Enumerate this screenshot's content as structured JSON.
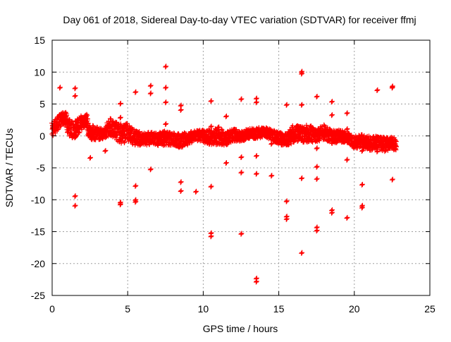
{
  "chart_data": {
    "type": "scatter",
    "title": "Day 061 of 2018, Sidereal Day-to-day VTEC variation (SDTVAR) for receiver ffmj",
    "xlabel": "GPS time / hours",
    "ylabel": "SDTVAR / TECUs",
    "xlim": [
      0,
      25
    ],
    "ylim": [
      -25,
      15
    ],
    "xticks": [
      0,
      5,
      10,
      15,
      20,
      25
    ],
    "yticks": [
      -25,
      -20,
      -15,
      -10,
      -5,
      0,
      5,
      10,
      15
    ],
    "grid": true,
    "marker": "plus",
    "series_color": "#ff0000",
    "main_band": [
      [
        0.0,
        1.0,
        1.2
      ],
      [
        0.3,
        1.8,
        1.2
      ],
      [
        0.6,
        2.6,
        1.0
      ],
      [
        0.9,
        2.8,
        1.0
      ],
      [
        1.1,
        1.2,
        1.4
      ],
      [
        1.5,
        1.0,
        1.4
      ],
      [
        1.9,
        2.0,
        1.2
      ],
      [
        2.3,
        2.6,
        1.0
      ],
      [
        2.4,
        0.6,
        1.2
      ],
      [
        3.0,
        0.4,
        1.0
      ],
      [
        3.4,
        0.3,
        0.8
      ],
      [
        3.8,
        1.5,
        1.4
      ],
      [
        4.2,
        0.8,
        1.4
      ],
      [
        4.6,
        0.3,
        1.6
      ],
      [
        5.0,
        0.6,
        1.4
      ],
      [
        5.4,
        -0.2,
        1.2
      ],
      [
        6.0,
        -0.5,
        1.0
      ],
      [
        6.5,
        -0.4,
        1.0
      ],
      [
        7.0,
        -0.5,
        1.0
      ],
      [
        7.5,
        -0.3,
        1.2
      ],
      [
        8.0,
        -0.5,
        1.0
      ],
      [
        8.5,
        -0.8,
        1.2
      ],
      [
        9.0,
        -0.4,
        1.0
      ],
      [
        9.5,
        0.0,
        0.8
      ],
      [
        10.0,
        0.0,
        1.0
      ],
      [
        10.5,
        -0.3,
        1.2
      ],
      [
        11.0,
        0.1,
        1.4
      ],
      [
        11.5,
        -0.5,
        1.0
      ],
      [
        12.0,
        0.2,
        1.0
      ],
      [
        12.5,
        -0.1,
        0.8
      ],
      [
        13.0,
        0.4,
        0.8
      ],
      [
        13.5,
        0.4,
        0.8
      ],
      [
        14.0,
        0.6,
        0.8
      ],
      [
        14.5,
        0.2,
        0.8
      ],
      [
        15.0,
        -0.4,
        1.0
      ],
      [
        15.5,
        -0.6,
        1.0
      ],
      [
        16.0,
        0.4,
        1.4
      ],
      [
        16.5,
        0.2,
        1.2
      ],
      [
        17.0,
        0.4,
        1.4
      ],
      [
        17.5,
        0.0,
        1.0
      ],
      [
        18.0,
        0.6,
        1.2
      ],
      [
        18.5,
        -0.2,
        1.0
      ],
      [
        19.0,
        0.0,
        1.0
      ],
      [
        19.5,
        -0.2,
        0.8
      ],
      [
        20.0,
        -1.0,
        1.0
      ],
      [
        20.5,
        -0.8,
        1.0
      ],
      [
        21.0,
        -1.2,
        1.2
      ],
      [
        21.5,
        -1.0,
        1.0
      ],
      [
        22.0,
        -1.4,
        1.2
      ],
      [
        22.5,
        -1.2,
        1.0
      ],
      [
        22.8,
        -1.2,
        1.0
      ]
    ],
    "outliers": [
      [
        0.5,
        7.5
      ],
      [
        1.5,
        7.4
      ],
      [
        1.5,
        6.2
      ],
      [
        1.5,
        -9.5
      ],
      [
        1.5,
        -11.0
      ],
      [
        1.5,
        -0.3
      ],
      [
        2.5,
        -3.5
      ],
      [
        3.5,
        -2.4
      ],
      [
        4.5,
        5.0
      ],
      [
        4.5,
        2.8
      ],
      [
        4.5,
        -10.5
      ],
      [
        4.5,
        -10.8
      ],
      [
        5.5,
        6.8
      ],
      [
        5.5,
        -7.9
      ],
      [
        5.5,
        -10.1
      ],
      [
        5.5,
        -10.4
      ],
      [
        6.5,
        7.8
      ],
      [
        6.5,
        6.6
      ],
      [
        6.5,
        -5.3
      ],
      [
        7.5,
        10.8
      ],
      [
        7.5,
        7.5
      ],
      [
        7.5,
        5.2
      ],
      [
        7.5,
        1.8
      ],
      [
        8.5,
        4.7
      ],
      [
        8.5,
        4.0
      ],
      [
        8.5,
        -7.3
      ],
      [
        8.5,
        -8.7
      ],
      [
        9.5,
        -8.8
      ],
      [
        10.5,
        5.4
      ],
      [
        10.5,
        1.4
      ],
      [
        10.5,
        -8.0
      ],
      [
        10.5,
        -15.3
      ],
      [
        10.5,
        -15.8
      ],
      [
        11.5,
        3.0
      ],
      [
        11.5,
        -4.3
      ],
      [
        12.5,
        5.7
      ],
      [
        12.5,
        -3.4
      ],
      [
        12.5,
        -5.8
      ],
      [
        12.5,
        -15.4
      ],
      [
        13.5,
        5.8
      ],
      [
        13.5,
        5.2
      ],
      [
        13.5,
        -3.2
      ],
      [
        13.5,
        -6.0
      ],
      [
        13.5,
        -22.4
      ],
      [
        13.5,
        -22.9
      ],
      [
        14.5,
        -1.3
      ],
      [
        14.5,
        -6.3
      ],
      [
        15.5,
        4.8
      ],
      [
        15.5,
        -10.3
      ],
      [
        15.5,
        -12.7
      ],
      [
        15.5,
        -13.1
      ],
      [
        16.5,
        10.0
      ],
      [
        16.5,
        9.7
      ],
      [
        16.5,
        4.8
      ],
      [
        16.5,
        -6.7
      ],
      [
        16.5,
        -18.4
      ],
      [
        17.5,
        6.1
      ],
      [
        17.5,
        -2.0
      ],
      [
        17.5,
        -4.9
      ],
      [
        17.5,
        -6.8
      ],
      [
        17.5,
        -14.4
      ],
      [
        17.5,
        -14.9
      ],
      [
        18.5,
        5.3
      ],
      [
        18.5,
        3.2
      ],
      [
        18.5,
        -11.7
      ],
      [
        18.5,
        -12.1
      ],
      [
        19.5,
        3.5
      ],
      [
        19.5,
        1.0
      ],
      [
        19.5,
        -3.8
      ],
      [
        19.5,
        -12.9
      ],
      [
        20.5,
        -2.4
      ],
      [
        20.5,
        -7.7
      ],
      [
        20.5,
        -11.0
      ],
      [
        20.5,
        -11.3
      ],
      [
        21.5,
        7.1
      ],
      [
        21.5,
        -2.5
      ],
      [
        22.5,
        7.7
      ],
      [
        22.5,
        7.5
      ],
      [
        22.5,
        -6.9
      ]
    ]
  }
}
